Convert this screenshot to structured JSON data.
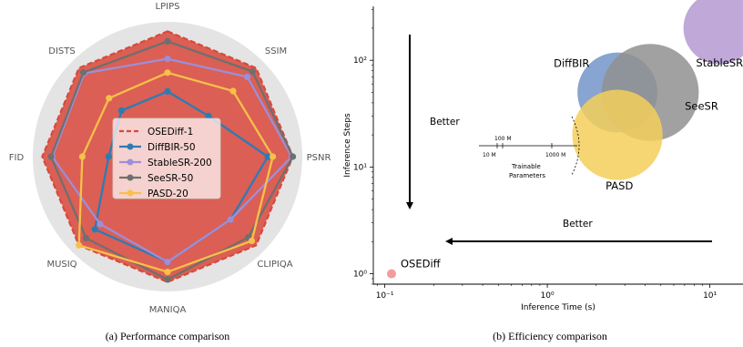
{
  "captions": {
    "a": "(a) Performance comparison",
    "b": "(b) Efficiency comparison"
  },
  "colors": {
    "OSEDiff-1": "#d9483b",
    "DiffBIR-50": "#2e7bb4",
    "StableSR-200": "#9d8ed8",
    "SeeSR-50": "#6f6f6f",
    "PASD-20": "#f7c04a",
    "radar_background": "#e4e4e4"
  },
  "chart_data": [
    {
      "type": "radar",
      "axes": [
        "LPIPS",
        "SSIM",
        "PSNR",
        "CLIPIQA",
        "MANIQA",
        "MUSIQ",
        "FID",
        "DISTS"
      ],
      "range": [
        0,
        1
      ],
      "grid": false,
      "legend": {
        "placement": "center",
        "entries": [
          "OSEDiff-1",
          "DiffBIR-50",
          "StableSR-200",
          "SeeSR-50",
          "PASD-20"
        ]
      },
      "series": [
        {
          "name": "OSEDiff-1",
          "style": "dashed-filled",
          "values": [
            1.0,
            1.0,
            1.0,
            1.0,
            1.0,
            1.0,
            1.0,
            1.0
          ]
        },
        {
          "name": "DiffBIR-50",
          "style": "line-markers",
          "values": [
            0.52,
            0.46,
            0.8,
            0.71,
            0.84,
            0.82,
            0.47,
            0.52
          ]
        },
        {
          "name": "StableSR-200",
          "style": "line-markers",
          "values": [
            0.78,
            0.9,
            0.99,
            0.71,
            0.84,
            0.76,
            0.92,
            0.94
          ]
        },
        {
          "name": "SeeSR-50",
          "style": "line-markers",
          "values": [
            0.92,
            0.96,
            1.0,
            0.91,
            0.98,
            0.92,
            0.93,
            0.95
          ]
        },
        {
          "name": "PASD-20",
          "style": "line-markers",
          "values": [
            0.67,
            0.74,
            0.84,
            0.95,
            0.92,
            1.0,
            0.68,
            0.66
          ]
        }
      ]
    },
    {
      "type": "scatter",
      "x_scale": "log",
      "y_scale": "log",
      "xlabel": "Inference Time (s)",
      "ylabel": "Inference Steps",
      "xlim": [
        0.085,
        16
      ],
      "ylim": [
        0.8,
        320
      ],
      "x_ticks": [
        {
          "value": 0.1,
          "label": "10⁻¹"
        },
        {
          "value": 1,
          "label": "10⁰"
        },
        {
          "value": 10,
          "label": "10¹"
        }
      ],
      "y_ticks": [
        {
          "value": 1,
          "label": "10⁰"
        },
        {
          "value": 10,
          "label": "10¹"
        },
        {
          "value": 100,
          "label": "10²"
        }
      ],
      "points": [
        {
          "name": "OSEDiff",
          "x": 0.11,
          "y": 1,
          "params_m": 1775,
          "color": "#f28a8a"
        },
        {
          "name": "DiffBIR",
          "x": 2.7,
          "y": 50,
          "params_m": 1717,
          "color": "#7394c9"
        },
        {
          "name": "SeeSR",
          "x": 4.3,
          "y": 50,
          "params_m": 2524,
          "color": "#909090"
        },
        {
          "name": "PASD",
          "x": 2.7,
          "y": 20,
          "params_m": 2193,
          "color": "#f4cf5b"
        },
        {
          "name": "StableSR",
          "x": 11.5,
          "y": 200,
          "params_m": 1410,
          "color": "#b59ad2"
        }
      ],
      "annotations": {
        "better_vertical": "Better",
        "better_horizontal": "Better"
      },
      "size_legend": {
        "title_line1": "Trainable",
        "title_line2": "Parameters",
        "labels": [
          "10 M",
          "100 M",
          "1000 M"
        ]
      }
    }
  ]
}
